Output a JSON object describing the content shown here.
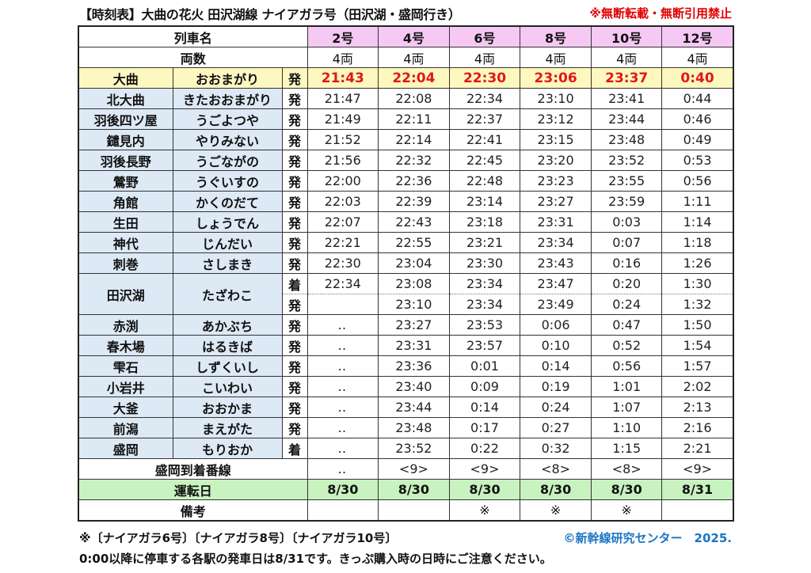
{
  "header": {
    "title": "【時刻表】大曲の花火 田沢湖線 ナイアガラ号（田沢湖・盛岡行き）",
    "notice": "※無断転載・無断引用禁止"
  },
  "table": {
    "train_name_label": "列車名",
    "cars_label": "両数",
    "trains": [
      {
        "name": "2号",
        "cars": "4両",
        "arrival_track": "‥",
        "operating_day": "8/30",
        "remarks": ""
      },
      {
        "name": "4号",
        "cars": "4両",
        "arrival_track": "<9>",
        "operating_day": "8/30",
        "remarks": ""
      },
      {
        "name": "6号",
        "cars": "4両",
        "arrival_track": "<9>",
        "operating_day": "8/30",
        "remarks": "※"
      },
      {
        "name": "8号",
        "cars": "4両",
        "arrival_track": "<8>",
        "operating_day": "8/30",
        "remarks": "※"
      },
      {
        "name": "10号",
        "cars": "4両",
        "arrival_track": "<8>",
        "operating_day": "8/30",
        "remarks": "※"
      },
      {
        "name": "12号",
        "cars": "4両",
        "arrival_track": "<9>",
        "operating_day": "8/31",
        "remarks": ""
      }
    ],
    "origin": {
      "station": "大曲",
      "kana": "おおまがり",
      "type": "発",
      "times": [
        "21:43",
        "22:04",
        "22:30",
        "23:06",
        "23:37",
        "0:40"
      ]
    },
    "stations": [
      {
        "station": "北大曲",
        "kana": "きたおおまがり",
        "type": "発",
        "times": [
          "21:47",
          "22:08",
          "22:34",
          "23:10",
          "23:41",
          "0:44"
        ]
      },
      {
        "station": "羽後四ツ屋",
        "kana": "うごよつや",
        "type": "発",
        "times": [
          "21:49",
          "22:11",
          "22:37",
          "23:12",
          "23:44",
          "0:46"
        ]
      },
      {
        "station": "鑓見内",
        "kana": "やりみない",
        "type": "発",
        "times": [
          "21:52",
          "22:14",
          "22:41",
          "23:15",
          "23:48",
          "0:49"
        ]
      },
      {
        "station": "羽後長野",
        "kana": "うごながの",
        "type": "発",
        "times": [
          "21:56",
          "22:32",
          "22:45",
          "23:20",
          "23:52",
          "0:53"
        ]
      },
      {
        "station": "鶯野",
        "kana": "うぐいすの",
        "type": "発",
        "times": [
          "22:00",
          "22:36",
          "22:48",
          "23:23",
          "23:55",
          "0:56"
        ]
      },
      {
        "station": "角館",
        "kana": "かくのだて",
        "type": "発",
        "times": [
          "22:03",
          "22:39",
          "23:14",
          "23:27",
          "23:59",
          "1:11"
        ]
      },
      {
        "station": "生田",
        "kana": "しょうでん",
        "type": "発",
        "times": [
          "22:07",
          "22:43",
          "23:18",
          "23:31",
          "0:03",
          "1:14"
        ]
      },
      {
        "station": "神代",
        "kana": "じんだい",
        "type": "発",
        "times": [
          "22:21",
          "22:55",
          "23:21",
          "23:34",
          "0:07",
          "1:18"
        ]
      },
      {
        "station": "刺巻",
        "kana": "さしまき",
        "type": "発",
        "times": [
          "22:30",
          "23:04",
          "23:30",
          "23:43",
          "0:16",
          "1:26"
        ]
      }
    ],
    "tazawako": {
      "station": "田沢湖",
      "kana": "たざわこ",
      "arrive_type": "着",
      "arrive_times": [
        "22:34",
        "23:08",
        "23:34",
        "23:47",
        "0:20",
        "1:30"
      ],
      "depart_type": "発",
      "depart_times": [
        "",
        "23:10",
        "23:34",
        "23:49",
        "0:24",
        "1:32"
      ]
    },
    "stations_after": [
      {
        "station": "赤渕",
        "kana": "あかぶち",
        "type": "発",
        "times": [
          "‥",
          "23:27",
          "23:53",
          "0:06",
          "0:47",
          "1:50"
        ]
      },
      {
        "station": "春木場",
        "kana": "はるきば",
        "type": "発",
        "times": [
          "‥",
          "23:31",
          "23:57",
          "0:10",
          "0:52",
          "1:54"
        ]
      },
      {
        "station": "雫石",
        "kana": "しずくいし",
        "type": "発",
        "times": [
          "‥",
          "23:36",
          "0:01",
          "0:14",
          "0:56",
          "1:57"
        ]
      },
      {
        "station": "小岩井",
        "kana": "こいわい",
        "type": "発",
        "times": [
          "‥",
          "23:40",
          "0:09",
          "0:19",
          "1:01",
          "2:02"
        ]
      },
      {
        "station": "大釜",
        "kana": "おおかま",
        "type": "発",
        "times": [
          "‥",
          "23:44",
          "0:14",
          "0:24",
          "1:07",
          "2:13"
        ]
      },
      {
        "station": "前潟",
        "kana": "まえがた",
        "type": "発",
        "times": [
          "‥",
          "23:48",
          "0:17",
          "0:27",
          "1:10",
          "2:16"
        ]
      },
      {
        "station": "盛岡",
        "kana": "もりおか",
        "type": "着",
        "times": [
          "‥",
          "23:52",
          "0:22",
          "0:32",
          "1:15",
          "2:21"
        ]
      }
    ],
    "arrival_track_label": "盛岡到着番線",
    "operating_day_label": "運転日",
    "remarks_label": "備考"
  },
  "footer": {
    "note1": "※〔ナイアガラ6号〕〔ナイアガラ8号〕〔ナイアガラ10号〕",
    "copyright": "©新幹線研究センター　2025.",
    "note2": "0:00以降に停車する各駅の発車日は8/31です。きっぷ購入時の日時にご注意ください。"
  },
  "colors": {
    "train_header_bg": "#f6c8f4",
    "origin_row_bg": "#fdf7c0",
    "origin_time_color": "#e01818",
    "station_bg": "#dde9f5",
    "operating_day_bg": "#c8f2c0",
    "notice_color": "#e00000",
    "copyright_color": "#1a74c4"
  }
}
